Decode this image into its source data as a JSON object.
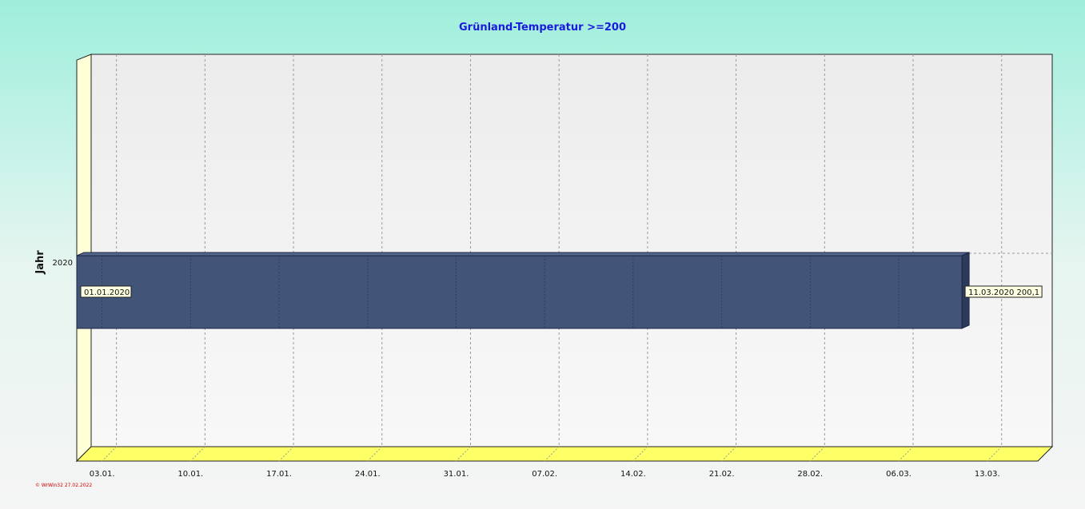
{
  "chart_data": {
    "type": "bar",
    "orientation": "horizontal",
    "title": "Grünland-Temperatur  >=200",
    "ylabel": "Jahr",
    "categories": [
      "2020"
    ],
    "bars": [
      {
        "category": "2020",
        "start": "01.01.2020",
        "end": "11.03.2020",
        "start_label": "01.01.2020",
        "end_label": "11.03.2020  200,1"
      }
    ],
    "xlim": [
      "01.01.2020",
      "17.03.2020"
    ],
    "x_ticks": [
      {
        "date": "03.01.2020",
        "label": "03.01."
      },
      {
        "date": "10.01.2020",
        "label": "10.01."
      },
      {
        "date": "17.01.2020",
        "label": "17.01."
      },
      {
        "date": "24.01.2020",
        "label": "24.01."
      },
      {
        "date": "31.01.2020",
        "label": "31.01."
      },
      {
        "date": "07.02.2020",
        "label": "07.02."
      },
      {
        "date": "14.02.2020",
        "label": "14.02."
      },
      {
        "date": "21.02.2020",
        "label": "21.02."
      },
      {
        "date": "28.02.2020",
        "label": "28.02."
      },
      {
        "date": "06.03.2020",
        "label": "06.03."
      },
      {
        "date": "13.03.2020",
        "label": "13.03."
      }
    ],
    "grid": true,
    "colors": {
      "bar": "#435479",
      "bar_dark": "#2c3a5c",
      "floor": "#ffff66",
      "left_wall": "#ffffd8",
      "title": "#1a1adc"
    }
  },
  "watermark": "© WrWin32  27.02.2022"
}
